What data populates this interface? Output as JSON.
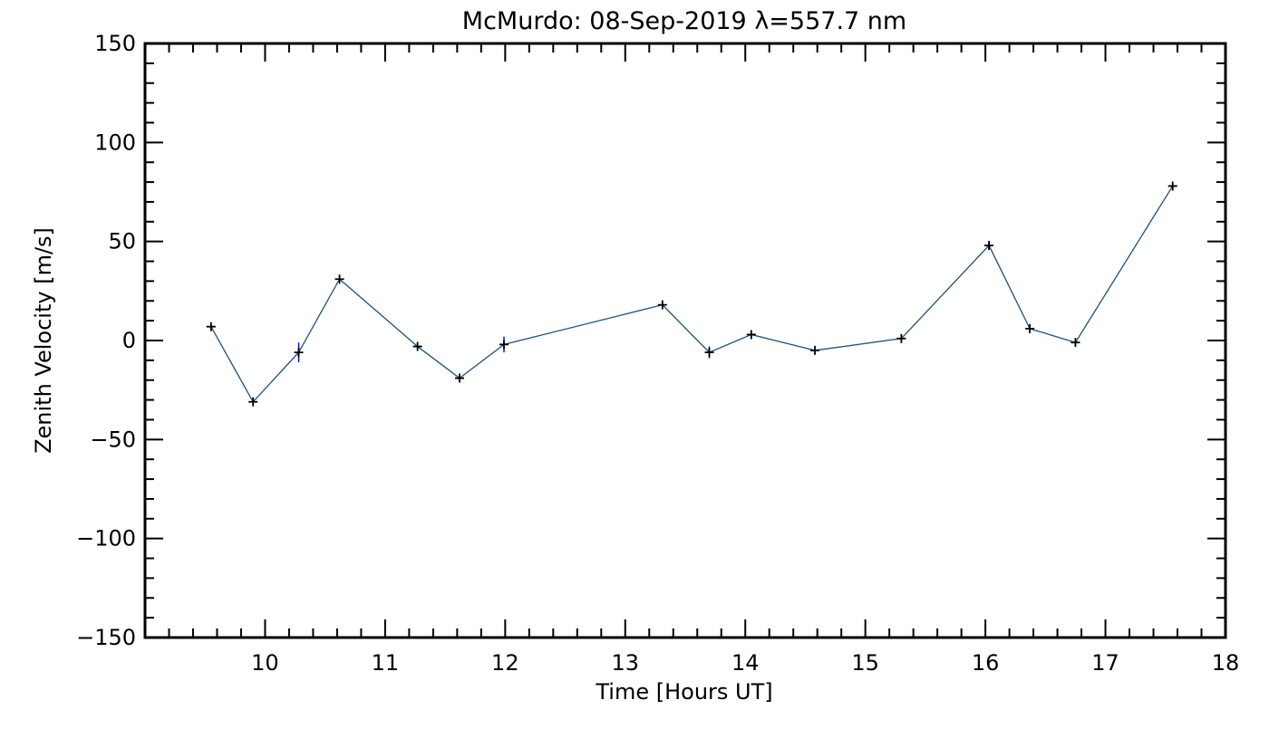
{
  "chart_data": {
    "type": "line",
    "title": "McMurdo: 08-Sep-2019 λ=557.7 nm",
    "xlabel": "Time [Hours UT]",
    "ylabel": "Zenith Velocity [m/s]",
    "xlim": [
      9,
      18
    ],
    "ylim": [
      -150,
      150
    ],
    "x_ticks": [
      10,
      11,
      12,
      13,
      14,
      15,
      16,
      17,
      18
    ],
    "x_tick_labels": [
      "10",
      "11",
      "12",
      "13",
      "14",
      "15",
      "16",
      "17",
      "18"
    ],
    "y_ticks": [
      -150,
      -100,
      -50,
      0,
      50,
      100,
      150
    ],
    "y_tick_labels": [
      "−150",
      "−100",
      "−50",
      "0",
      "50",
      "100",
      "150"
    ],
    "grid": false,
    "series": [
      {
        "line_color": "#1f4f7a",
        "marker": "+",
        "marker_color": "#000000",
        "error_color": "#0000cc",
        "x": [
          9.55,
          9.9,
          10.28,
          10.62,
          11.27,
          11.62,
          11.99,
          13.31,
          13.7,
          14.05,
          14.58,
          15.3,
          16.03,
          16.37,
          16.75,
          17.56
        ],
        "y": [
          7,
          -31,
          -6,
          31,
          -3,
          -19,
          -2,
          18,
          -6,
          3,
          -5,
          1,
          48,
          6,
          -1,
          78
        ],
        "error": [
          1,
          1,
          5,
          1,
          1,
          1,
          4,
          2,
          3,
          1,
          1,
          2,
          2,
          1,
          2,
          1
        ]
      }
    ]
  }
}
